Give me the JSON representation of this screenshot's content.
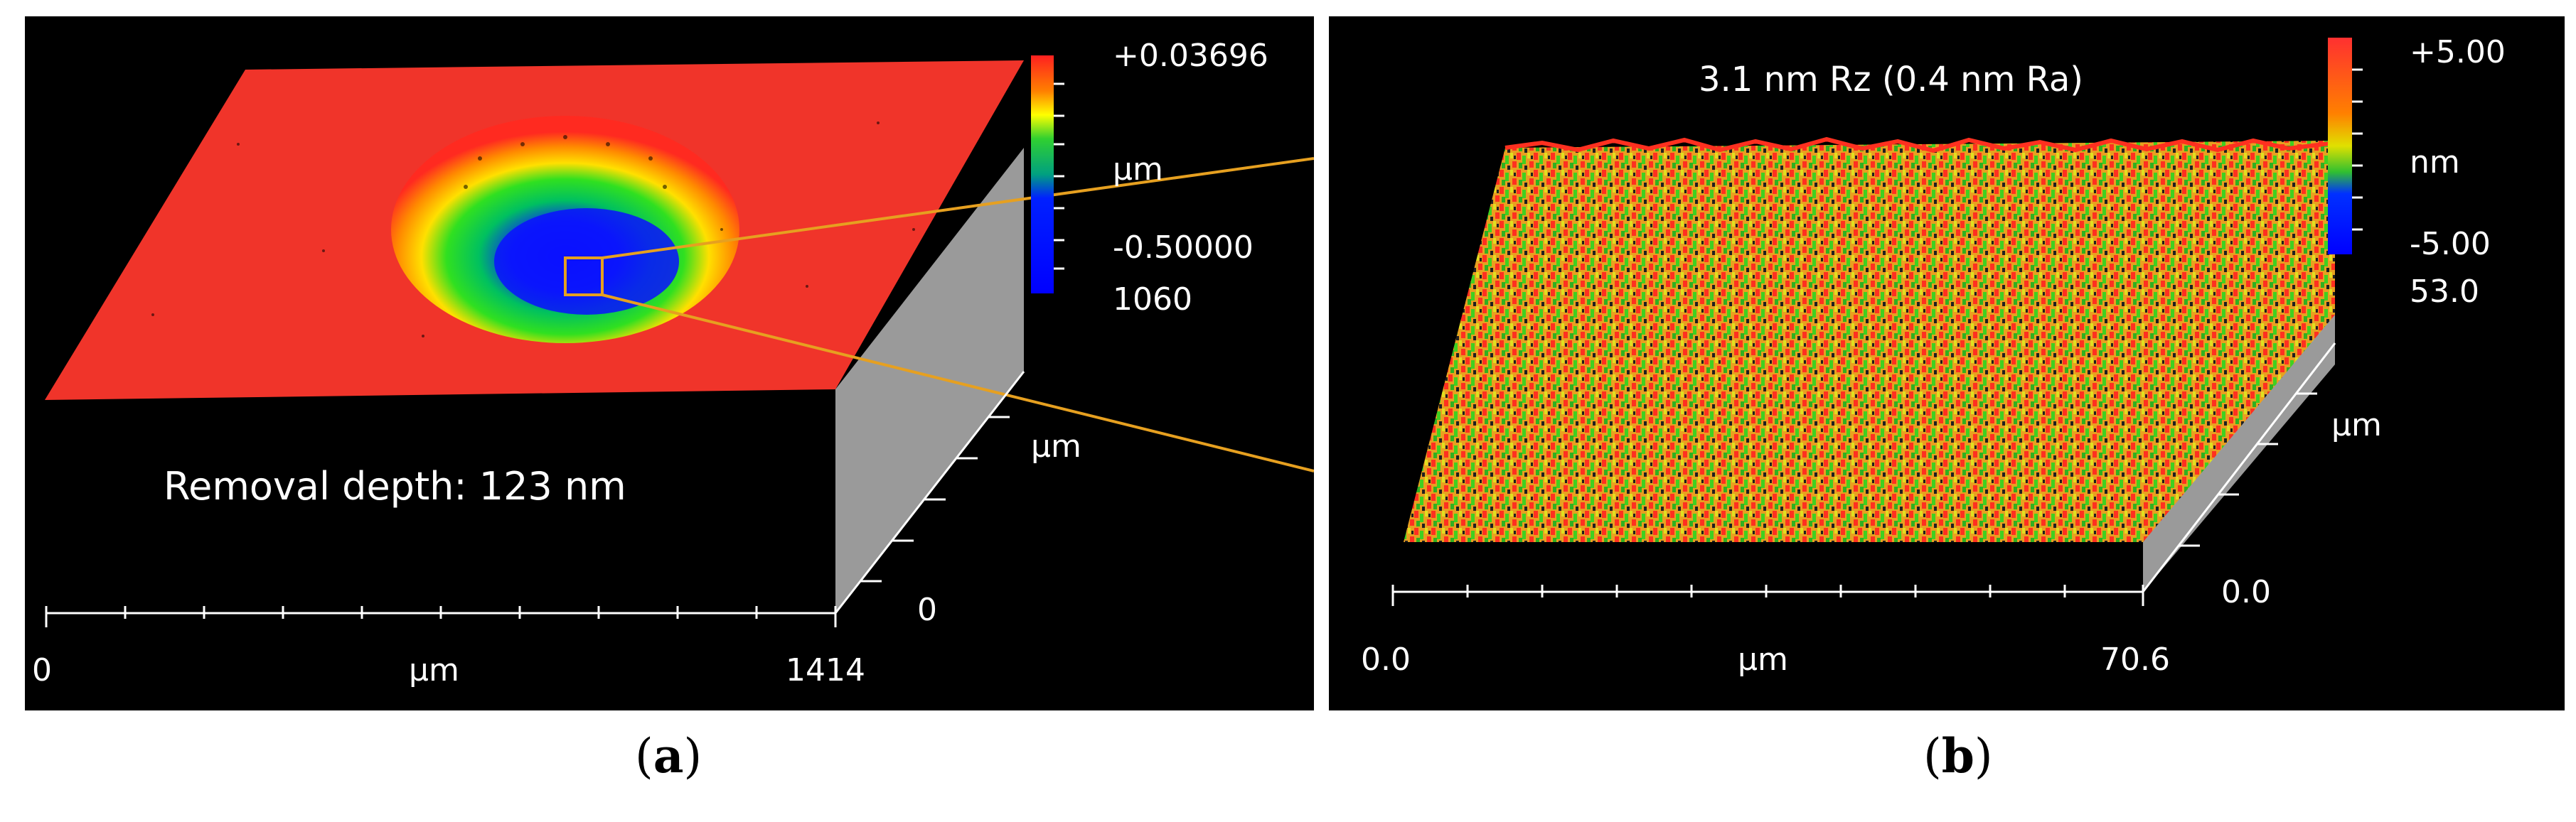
{
  "panel_a": {
    "scale_max": "+0.03696",
    "scale_unit": "µm",
    "scale_min": "-0.50000",
    "y_max": "1060",
    "y_unit": "µm",
    "y_min": "0",
    "x_min": "0",
    "x_unit": "µm",
    "x_max": "1414",
    "annotation": "Removal depth: 123 nm",
    "caption_letter": "a"
  },
  "panel_b": {
    "title": "3.1 nm Rz  (0.4 nm Ra)",
    "scale_max": "+5.00",
    "scale_unit": "nm",
    "scale_min": "-5.00",
    "y_max": "53.0",
    "y_unit": "µm",
    "y_min": "0.0",
    "x_min": "0.0",
    "x_unit": "µm",
    "x_max": "70.6",
    "caption_letter": "b"
  },
  "colors": {
    "background": "#000000",
    "surface_flat": "#f0342a",
    "wall": "#9a9a9a",
    "connector": "#e6a020",
    "text": "#ffffff"
  }
}
